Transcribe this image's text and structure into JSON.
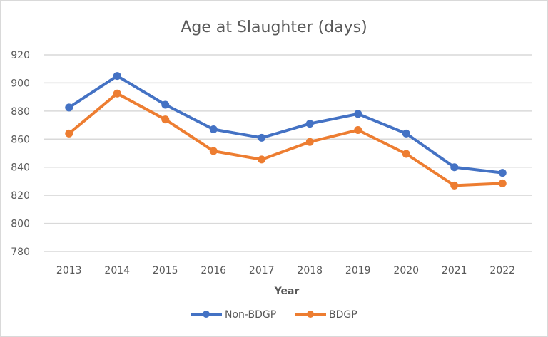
{
  "chart_data": {
    "type": "line",
    "title": "Age at Slaughter (days)",
    "xlabel": "Year",
    "ylabel": "",
    "ylim": [
      780,
      920
    ],
    "yticks": [
      "780",
      "800",
      "820",
      "840",
      "860",
      "880",
      "900",
      "920"
    ],
    "grid": true,
    "legend_position": "bottom",
    "categories": [
      "2013",
      "2014",
      "2015",
      "2016",
      "2017",
      "2018",
      "2019",
      "2020",
      "2021",
      "2022"
    ],
    "series": [
      {
        "name": "Non-BDGP",
        "color": "#4472c4",
        "values": [
          882.5,
          905,
          884.5,
          867,
          861,
          871,
          878,
          864,
          840,
          836
        ]
      },
      {
        "name": "BDGP",
        "color": "#ed7d31",
        "values": [
          864,
          892.5,
          874,
          851.5,
          845.5,
          858,
          866.5,
          849.5,
          827,
          828.5
        ]
      }
    ]
  }
}
